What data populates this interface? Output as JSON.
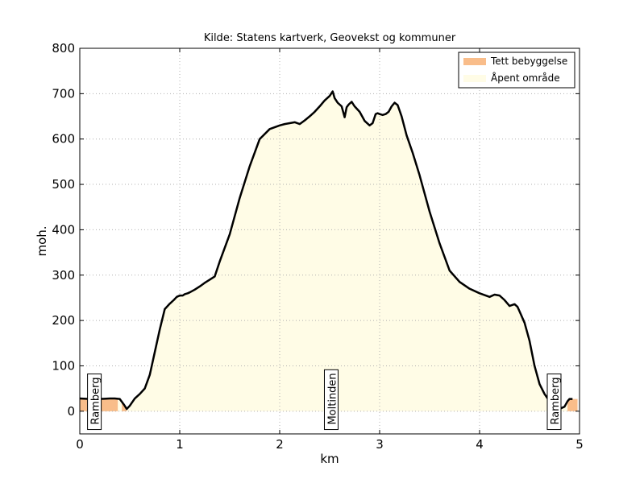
{
  "chart_data": {
    "type": "area",
    "title": "Kilde: Statens kartverk, Geovekst og kommuner",
    "xlabel": "km",
    "ylabel": "moh.",
    "xlim": [
      0,
      5
    ],
    "ylim": [
      -50,
      800
    ],
    "xticks": [
      "0",
      "1",
      "2",
      "3",
      "4",
      "5"
    ],
    "yticks": [
      "0",
      "100",
      "200",
      "300",
      "400",
      "500",
      "600",
      "700",
      "800"
    ],
    "grid": true,
    "legend_position": "top-right",
    "legend": [
      {
        "label": "Tett bebyggelse",
        "color": "#f9bd8a"
      },
      {
        "label": "Åpent område",
        "color": "#fffce6"
      }
    ],
    "colors": {
      "line": "#000000",
      "built": "#f9bd8a",
      "open": "#fffce6",
      "grid": "#b0b0b0"
    },
    "built_ranges": [
      [
        0.0,
        0.38
      ],
      [
        0.42,
        0.47
      ],
      [
        4.88,
        4.98
      ]
    ],
    "places": [
      {
        "name": "Ramberg",
        "x": 0.15
      },
      {
        "name": "Moltinden",
        "x": 2.52
      },
      {
        "name": "Ramberg",
        "x": 4.75
      }
    ],
    "profile": {
      "x": [
        0.0,
        0.1,
        0.2,
        0.3,
        0.35,
        0.4,
        0.44,
        0.47,
        0.5,
        0.55,
        0.6,
        0.65,
        0.7,
        0.75,
        0.8,
        0.85,
        0.9,
        0.94,
        0.97,
        1.0,
        1.03,
        1.05,
        1.08,
        1.1,
        1.15,
        1.2,
        1.25,
        1.3,
        1.35,
        1.4,
        1.5,
        1.6,
        1.7,
        1.8,
        1.9,
        1.95,
        2.0,
        2.05,
        2.1,
        2.15,
        2.2,
        2.25,
        2.3,
        2.35,
        2.4,
        2.45,
        2.5,
        2.53,
        2.55,
        2.58,
        2.62,
        2.65,
        2.67,
        2.69,
        2.72,
        2.75,
        2.8,
        2.85,
        2.9,
        2.93,
        2.96,
        2.98,
        3.0,
        3.03,
        3.06,
        3.09,
        3.12,
        3.15,
        3.18,
        3.22,
        3.27,
        3.33,
        3.4,
        3.5,
        3.6,
        3.7,
        3.8,
        3.9,
        4.0,
        4.05,
        4.1,
        4.15,
        4.2,
        4.25,
        4.3,
        4.35,
        4.38,
        4.41,
        4.45,
        4.5,
        4.55,
        4.6,
        4.65,
        4.7,
        4.75,
        4.8,
        4.85,
        4.88,
        4.9,
        4.93
      ],
      "y": [
        28,
        27,
        27,
        28,
        28,
        27,
        15,
        5,
        12,
        28,
        38,
        50,
        80,
        130,
        180,
        225,
        237,
        245,
        252,
        255,
        255,
        258,
        260,
        262,
        268,
        275,
        283,
        290,
        297,
        330,
        390,
        470,
        540,
        600,
        622,
        626,
        630,
        633,
        635,
        637,
        633,
        641,
        650,
        660,
        672,
        685,
        695,
        705,
        690,
        680,
        672,
        648,
        670,
        676,
        682,
        672,
        660,
        640,
        630,
        635,
        655,
        657,
        655,
        653,
        655,
        660,
        672,
        680,
        675,
        650,
        608,
        570,
        520,
        440,
        370,
        310,
        285,
        270,
        260,
        256,
        252,
        257,
        255,
        245,
        232,
        236,
        230,
        215,
        195,
        155,
        100,
        60,
        38,
        22,
        10,
        5,
        10,
        22,
        27,
        27
      ]
    }
  }
}
